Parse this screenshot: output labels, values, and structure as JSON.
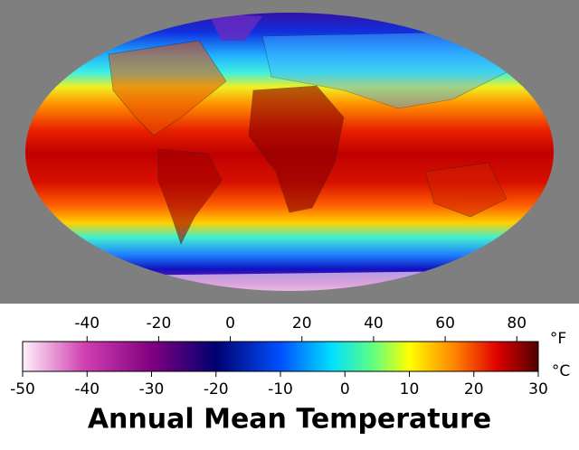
{
  "title": "Annual Mean Temperature",
  "colorbar": {
    "fahrenheit": {
      "unit": "°F",
      "lim": [
        -58,
        86
      ],
      "ticks": [
        -40,
        -20,
        0,
        20,
        40,
        60,
        80
      ]
    },
    "celsius": {
      "unit": "°C",
      "lim": [
        -50,
        30
      ],
      "ticks": [
        -50,
        -40,
        -30,
        -20,
        -10,
        0,
        10,
        20,
        30
      ]
    }
  }
}
